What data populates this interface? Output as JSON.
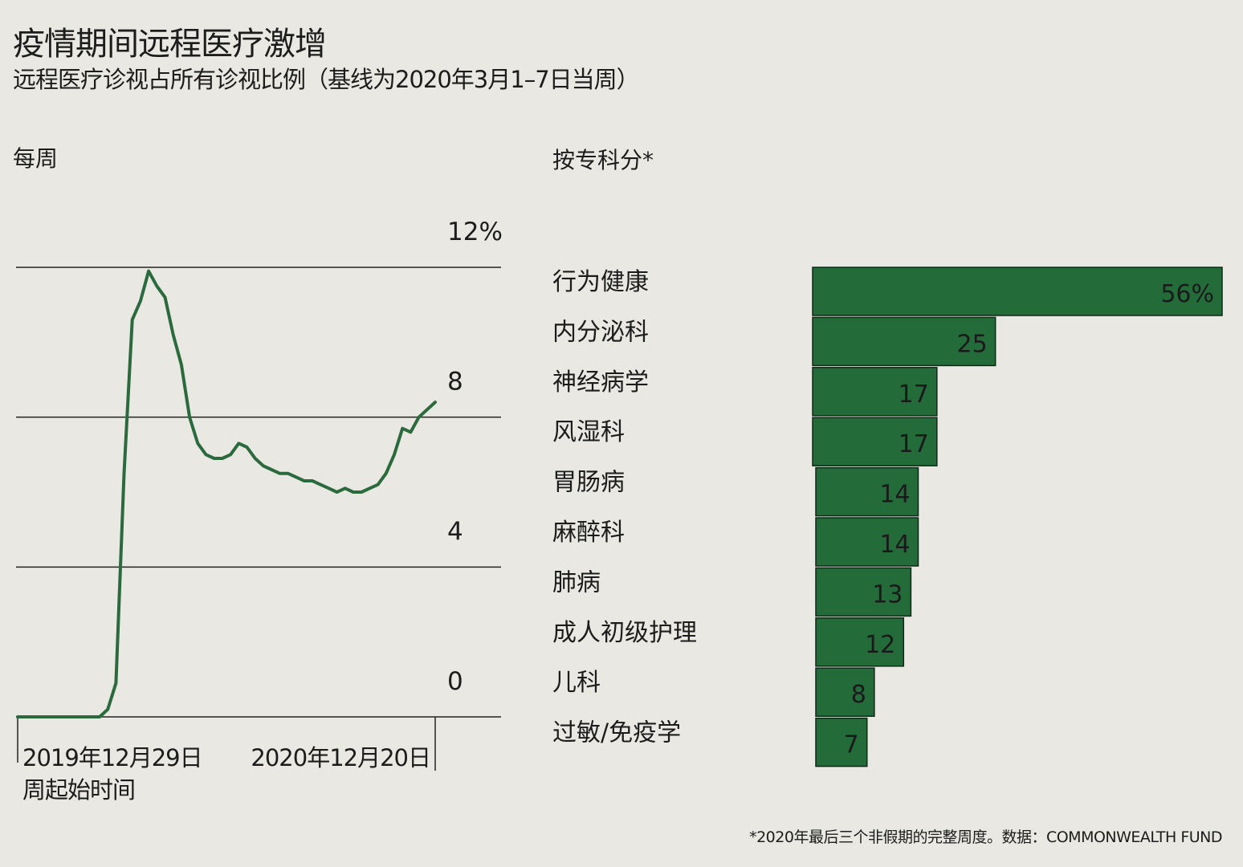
{
  "title": "疫情期间远程医疗激增",
  "subtitle": "远程医疗诊视占所有诊视比例（基线为2020年3月1–7日当周）",
  "left_panel_label": "每周",
  "right_panel_label": "按专科分*",
  "footnote": "*2020年最后三个非假期的完整周度。数据：COMMONWEALTH FUND",
  "colors": {
    "series": "#2a6a3c",
    "bar_fill": "#246b3a",
    "bar_stroke": "#0e2a16",
    "grid": "#222222"
  },
  "chart_data": [
    {
      "type": "line",
      "unit": "%",
      "ylim": [
        0,
        12
      ],
      "yticks": [
        0,
        4,
        8,
        12
      ],
      "ytick_labels": [
        "0",
        "4",
        "8",
        "12%"
      ],
      "xtick_labels": [
        "2019年12月29日",
        "2020年12月20日"
      ],
      "xlabel": "周起始时间",
      "grid": true,
      "series": [
        {
          "x": [
            0,
            1,
            2,
            3,
            4,
            5,
            6,
            7,
            8,
            9,
            10,
            11,
            12,
            13,
            14,
            15,
            16,
            17,
            18,
            19,
            20,
            21,
            22,
            23,
            24,
            25,
            26,
            27,
            28,
            29,
            30,
            31,
            32,
            33,
            34,
            35,
            36,
            37,
            38,
            39,
            40,
            41,
            42,
            43,
            44,
            45,
            46,
            47,
            48,
            49,
            50,
            51
          ],
          "y": [
            0,
            0,
            0,
            0,
            0,
            0,
            0,
            0,
            0,
            0,
            0,
            0.2,
            0.9,
            6.5,
            10.6,
            11.1,
            11.9,
            11.5,
            11.2,
            10.2,
            9.4,
            8.0,
            7.3,
            7.0,
            6.9,
            6.9,
            7.0,
            7.3,
            7.2,
            6.9,
            6.7,
            6.6,
            6.5,
            6.5,
            6.4,
            6.3,
            6.3,
            6.2,
            6.1,
            6.0,
            6.1,
            6.0,
            6.0,
            6.1,
            6.2,
            6.5,
            7.0,
            7.7,
            7.6,
            8.0,
            8.2,
            8.4
          ]
        }
      ]
    },
    {
      "type": "bar",
      "orientation": "horizontal",
      "unit": "%",
      "categories": [
        "行为健康",
        "内分泌科",
        "神经病学",
        "风湿科",
        "胃肠病",
        "麻醉科",
        "肺病",
        "成人初级护理",
        "儿科",
        "过敏/免疫学"
      ],
      "values": [
        56,
        25,
        17,
        17,
        14,
        14,
        13,
        12,
        8,
        7
      ],
      "value_labels": [
        "56%",
        "25",
        "17",
        "17",
        "14",
        "14",
        "13",
        "12",
        "8",
        "7"
      ]
    }
  ]
}
